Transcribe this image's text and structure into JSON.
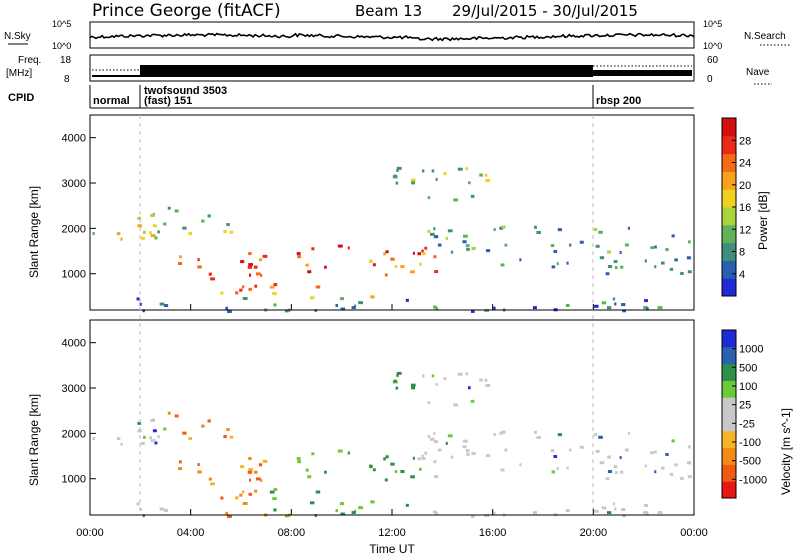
{
  "header": {
    "station": "Prince George (fitACF)",
    "beam": "Beam 13",
    "dates": "29/Jul/2015 - 30/Jul/2015"
  },
  "left_labels": {
    "nsky": "N.Sky",
    "nsky_ticks": [
      "10^5",
      "10^0"
    ],
    "freq_top": "Freq.",
    "freq_unit": "[MHz]",
    "freq_ticks": [
      "18",
      "8"
    ],
    "cpid": "CPID"
  },
  "right_labels": {
    "nsearch": "N.Search",
    "nsearch_ticks": [
      "10^5",
      "10^0"
    ],
    "nave": "Nave",
    "nave_ticks": [
      "60",
      "0"
    ]
  },
  "cpid_labels": [
    "normal",
    "twofsound 3503",
    "(fast) 151",
    "rbsp 200"
  ],
  "chart_data": [
    {
      "type": "heatmap",
      "name": "power-panel",
      "ylabel": "Slant Range [km]",
      "xlabel": "Time UT",
      "ylim": [
        200,
        4500
      ],
      "yticks": [
        "4000",
        "3000",
        "2000",
        "1000"
      ],
      "xticks": [
        "00:00",
        "04:00",
        "08:00",
        "12:00",
        "16:00",
        "20:00",
        "00:00"
      ],
      "colorbar_label": "Power [dB]",
      "colorbar_ticks": [
        "28",
        "24",
        "20",
        "16",
        "12",
        "8",
        "4"
      ],
      "colorbar_colors": [
        "#1f2bd6",
        "#2a5fb0",
        "#3f8f7a",
        "#5fb25a",
        "#a9d23c",
        "#f0d020",
        "#f7a21a",
        "#f46a17",
        "#ea2a14",
        "#d40f0f"
      ]
    },
    {
      "type": "heatmap",
      "name": "velocity-panel",
      "ylabel": "Slant Range [km]",
      "xlabel": "Time UT",
      "ylim": [
        200,
        4500
      ],
      "yticks": [
        "4000",
        "3000",
        "2000",
        "1000"
      ],
      "xticks": [
        "00:00",
        "04:00",
        "08:00",
        "12:00",
        "16:00",
        "20:00",
        "00:00"
      ],
      "colorbar_label": "Velocity [m s^-1]",
      "colorbar_ticks": [
        "1000",
        "500",
        "100",
        "25",
        "-25",
        "-100",
        "-500",
        "-1000"
      ],
      "colorbar_colors": [
        "#e81616",
        "#f05a12",
        "#f28a18",
        "#f6b428",
        "#c8c8c8",
        "#c8c8c8",
        "#6cc93a",
        "#2f8f4a",
        "#2b62b0",
        "#1f2bd6"
      ]
    }
  ]
}
